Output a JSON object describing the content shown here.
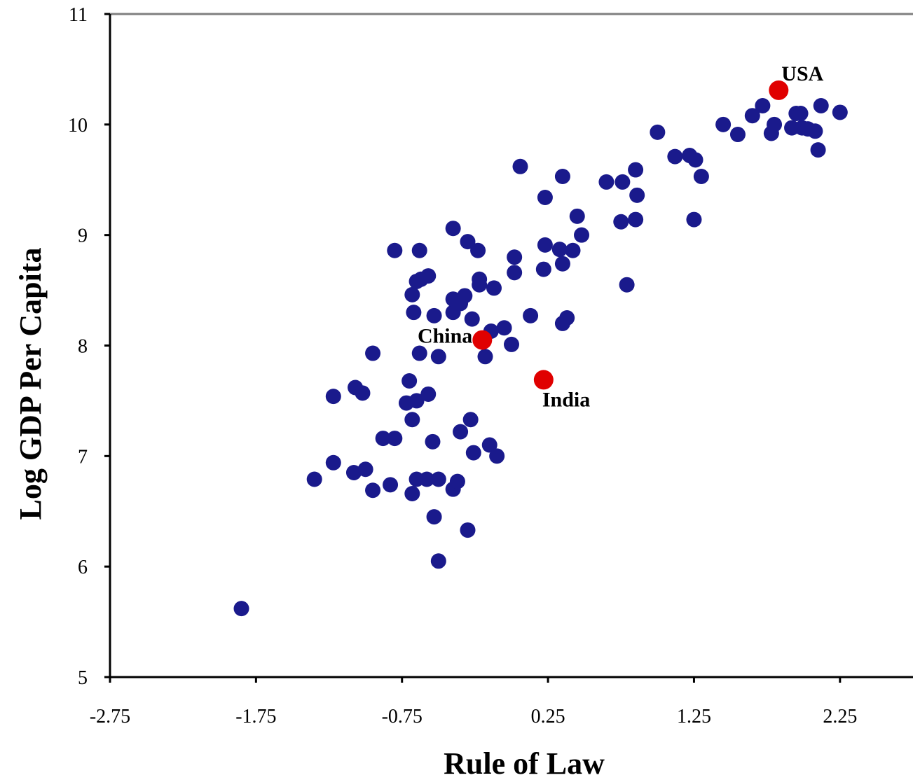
{
  "chart_data": {
    "type": "scatter",
    "title": "",
    "xlabel": "Rule of Law",
    "ylabel": "Log GDP Per Capita",
    "xlim": [
      -2.75,
      2.75
    ],
    "ylim": [
      5,
      11
    ],
    "xticks": [
      "-2.75",
      "-1.75",
      "-0.75",
      "0.25",
      "1.25",
      "2.25"
    ],
    "xtick_values": [
      -2.75,
      -1.75,
      -0.75,
      0.25,
      1.25,
      2.25
    ],
    "yticks": [
      "5",
      "6",
      "7",
      "8",
      "9",
      "10",
      "11"
    ],
    "ytick_values": [
      5,
      6,
      7,
      8,
      9,
      10,
      11
    ],
    "grid": false,
    "colors": {
      "countries": "#1a1a8c",
      "highlight": "#e00000"
    },
    "series": [
      {
        "points": [
          [
            -1.85,
            5.62
          ],
          [
            -1.35,
            6.79
          ],
          [
            -1.22,
            6.94
          ],
          [
            -1.22,
            7.54
          ],
          [
            -1.08,
            6.85
          ],
          [
            -1.07,
            7.62
          ],
          [
            -1.02,
            7.57
          ],
          [
            -1.0,
            6.88
          ],
          [
            -0.95,
            6.69
          ],
          [
            -0.95,
            7.93
          ],
          [
            -0.88,
            7.16
          ],
          [
            -0.83,
            6.74
          ],
          [
            -0.8,
            7.16
          ],
          [
            -0.8,
            8.86
          ],
          [
            -0.72,
            7.48
          ],
          [
            -0.7,
            7.68
          ],
          [
            -0.68,
            6.66
          ],
          [
            -0.68,
            7.33
          ],
          [
            -0.68,
            8.46
          ],
          [
            -0.67,
            8.3
          ],
          [
            -0.65,
            6.79
          ],
          [
            -0.65,
            7.5
          ],
          [
            -0.65,
            8.58
          ],
          [
            -0.63,
            7.93
          ],
          [
            -0.63,
            8.86
          ],
          [
            -0.62,
            8.6
          ],
          [
            -0.58,
            6.79
          ],
          [
            -0.57,
            7.56
          ],
          [
            -0.57,
            8.63
          ],
          [
            -0.54,
            7.13
          ],
          [
            -0.53,
            6.45
          ],
          [
            -0.53,
            8.27
          ],
          [
            -0.5,
            6.05
          ],
          [
            -0.5,
            6.79
          ],
          [
            -0.5,
            7.9
          ],
          [
            -0.4,
            6.7
          ],
          [
            -0.4,
            8.3
          ],
          [
            -0.4,
            8.42
          ],
          [
            -0.4,
            9.06
          ],
          [
            -0.37,
            6.77
          ],
          [
            -0.35,
            7.22
          ],
          [
            -0.35,
            8.38
          ],
          [
            -0.32,
            8.45
          ],
          [
            -0.3,
            6.33
          ],
          [
            -0.3,
            8.94
          ],
          [
            -0.28,
            7.33
          ],
          [
            -0.27,
            8.24
          ],
          [
            -0.26,
            7.03
          ],
          [
            -0.23,
            8.86
          ],
          [
            -0.22,
            8.55
          ],
          [
            -0.22,
            8.6
          ],
          [
            -0.18,
            7.9
          ],
          [
            -0.15,
            7.1
          ],
          [
            -0.14,
            8.13
          ],
          [
            -0.12,
            8.52
          ],
          [
            -0.1,
            7.0
          ],
          [
            -0.05,
            8.16
          ],
          [
            0.0,
            8.01
          ],
          [
            0.02,
            8.66
          ],
          [
            0.02,
            8.8
          ],
          [
            0.06,
            9.62
          ],
          [
            0.13,
            8.27
          ],
          [
            0.22,
            8.69
          ],
          [
            0.23,
            8.91
          ],
          [
            0.23,
            9.34
          ],
          [
            0.33,
            8.87
          ],
          [
            0.35,
            8.74
          ],
          [
            0.35,
            9.53
          ],
          [
            0.35,
            8.2
          ],
          [
            0.38,
            8.25
          ],
          [
            0.42,
            8.86
          ],
          [
            0.45,
            9.17
          ],
          [
            0.48,
            9.0
          ],
          [
            0.65,
            9.48
          ],
          [
            0.75,
            9.12
          ],
          [
            0.76,
            9.48
          ],
          [
            0.79,
            8.55
          ],
          [
            0.85,
            9.14
          ],
          [
            0.85,
            9.59
          ],
          [
            0.86,
            9.36
          ],
          [
            1.0,
            9.93
          ],
          [
            1.12,
            9.71
          ],
          [
            1.22,
            9.72
          ],
          [
            1.25,
            9.14
          ],
          [
            1.26,
            9.68
          ],
          [
            1.3,
            9.53
          ],
          [
            1.45,
            10.0
          ],
          [
            1.55,
            9.91
          ],
          [
            1.65,
            10.08
          ],
          [
            1.72,
            10.17
          ],
          [
            1.78,
            9.92
          ],
          [
            1.8,
            10.0
          ],
          [
            1.92,
            9.97
          ],
          [
            1.95,
            10.1
          ],
          [
            1.98,
            10.1
          ],
          [
            1.99,
            9.97
          ],
          [
            2.03,
            9.96
          ],
          [
            2.08,
            9.94
          ],
          [
            2.1,
            9.77
          ],
          [
            2.12,
            10.17
          ],
          [
            2.25,
            10.11
          ]
        ]
      },
      {
        "points": [
          {
            "x": -0.2,
            "y": 8.05,
            "label": "China"
          },
          {
            "x": 0.22,
            "y": 7.69,
            "label": "India"
          },
          {
            "x": 1.83,
            "y": 10.31,
            "label": "USA"
          }
        ]
      }
    ]
  }
}
